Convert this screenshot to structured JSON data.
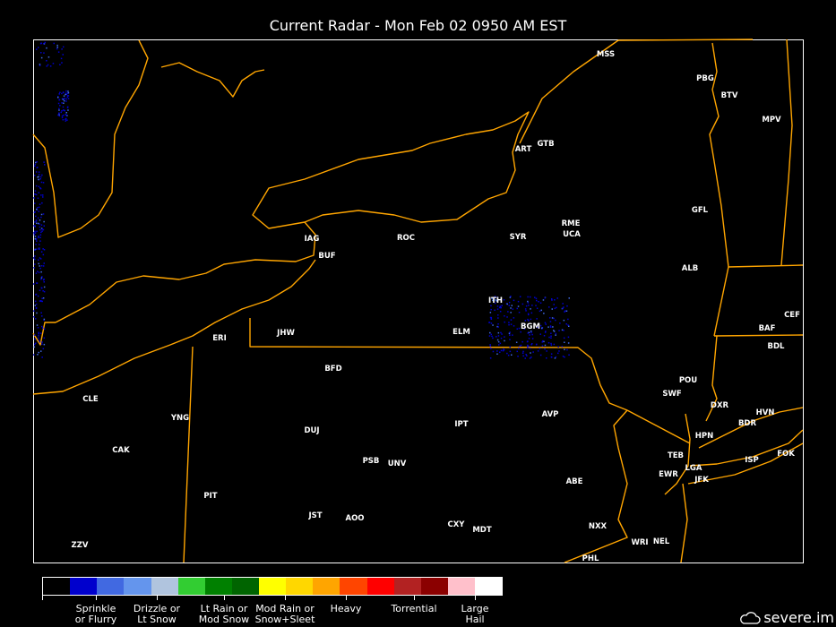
{
  "title": "Current Radar - Mon Feb 02 0950 AM EST",
  "stations": [
    "MSS",
    "PBG",
    "BTV",
    "MPV",
    "ART",
    "GTB",
    "RME",
    "UCA",
    "GFL",
    "SYR",
    "ROC",
    "IAG",
    "BUF",
    "ALB",
    "ITH",
    "BGM",
    "CEF",
    "BAF",
    "BDL",
    "ERI",
    "JHW",
    "ELM",
    "BFD",
    "POU",
    "SWF",
    "DXR",
    "HVN",
    "BDR",
    "CLE",
    "YNG",
    "IPT",
    "AVP",
    "HPN",
    "DUJ",
    "CAK",
    "TEB",
    "FOK",
    "ISP",
    "LGA",
    "PSB",
    "UNV",
    "EWR",
    "JFK",
    "ABE",
    "PIT",
    "JST",
    "AOO",
    "CXY",
    "MDT",
    "NXX",
    "WRI",
    "NEL",
    "ZZV",
    "PHL"
  ],
  "legend": {
    "colors": [
      "#000000",
      "#0000CD",
      "#4169E1",
      "#6495ED",
      "#B0C4DE",
      "#32CD32",
      "#008000",
      "#006400",
      "#FFFF00",
      "#FFD700",
      "#FFA500",
      "#FF4500",
      "#FF0000",
      "#B22222",
      "#8B0000",
      "#FFC0CB",
      "#FFFFFF"
    ],
    "labels": [
      {
        "line1": "Sprinkle",
        "line2": "or Flurry"
      },
      {
        "line1": "Drizzle or",
        "line2": "Lt Snow"
      },
      {
        "line1": "Lt Rain or",
        "line2": "Mod Snow"
      },
      {
        "line1": "Mod Rain or",
        "line2": "Snow+Sleet"
      },
      {
        "line1": "Heavy",
        "line2": ""
      },
      {
        "line1": "Torrential",
        "line2": ""
      },
      {
        "line1": "Large",
        "line2": "Hail"
      }
    ]
  },
  "colors": {
    "borders": "#FFA500",
    "background": "#000000",
    "radar_light": "#0000CD"
  },
  "brand": {
    "text": "severe.im",
    "icon": "cloud-icon"
  }
}
